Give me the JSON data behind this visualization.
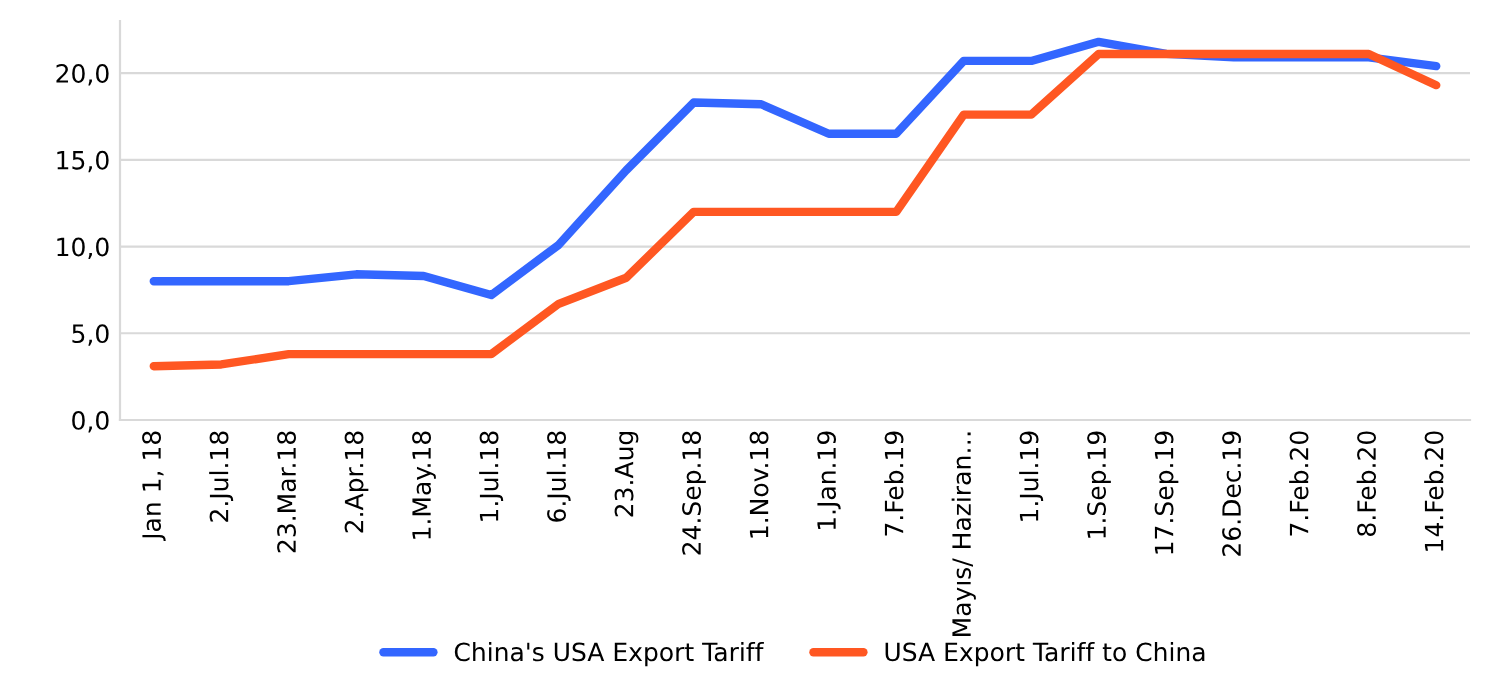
{
  "chart_data": {
    "type": "line",
    "categories": [
      "Jan 1, 18",
      "2.Jul.18",
      "23.Mar.18",
      "2.Apr.18",
      "1.May.18",
      "1.Jul.18",
      "6.Jul.18",
      "23.Aug",
      "24.Sep.18",
      "1.Nov.18",
      "1.Jan.19",
      "7.Feb.19",
      "Mayıs/ Haziran…",
      "1.Jul.19",
      "1.Sep.19",
      "17.Sep.19",
      "26.Dec.19",
      "7.Feb.20",
      "8.Feb.20",
      "14.Feb.20"
    ],
    "series": [
      {
        "name": "China's USA Export Tariff",
        "color": "#3366ff",
        "values": [
          8.0,
          8.0,
          8.0,
          8.4,
          8.3,
          7.2,
          10.1,
          14.4,
          18.3,
          18.2,
          16.5,
          16.5,
          20.7,
          20.7,
          21.8,
          21.1,
          20.9,
          20.9,
          20.9,
          20.4
        ]
      },
      {
        "name": "USA Export Tariff to China",
        "color": "#ff5722",
        "values": [
          3.1,
          3.2,
          3.8,
          3.8,
          3.8,
          3.8,
          6.7,
          8.2,
          12.0,
          12.0,
          12.0,
          12.0,
          17.6,
          17.6,
          21.1,
          21.1,
          21.1,
          21.1,
          21.1,
          19.3
        ]
      }
    ],
    "ylim": [
      0,
      23
    ],
    "yticks": [
      {
        "value": 0,
        "label": "0,0"
      },
      {
        "value": 5,
        "label": "5,0"
      },
      {
        "value": 10,
        "label": "10,0"
      },
      {
        "value": 15,
        "label": "15,0"
      },
      {
        "value": 20,
        "label": "20,0"
      }
    ],
    "grid": "y",
    "legend": "bottom",
    "marker": "none",
    "line_style": "solid"
  }
}
